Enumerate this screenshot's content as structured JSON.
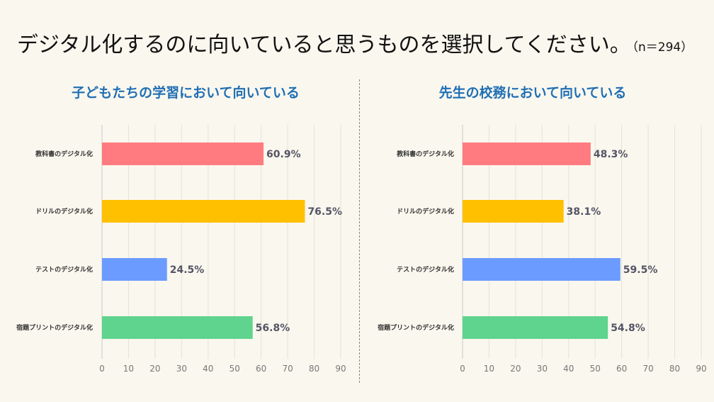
{
  "title": "デジタル化するのに向いていると思うものを選択してください。",
  "sample_size": "（n＝294）",
  "chart_data": [
    {
      "type": "bar",
      "orientation": "horizontal",
      "title": "子どもたちの学習において向いている",
      "categories": [
        "教科書のデジタル化",
        "ドリルのデジタル化",
        "テストのデジタル化",
        "宿題プリントのデジタル化"
      ],
      "values": [
        60.9,
        76.5,
        24.5,
        56.8
      ],
      "value_labels": [
        "60.9%",
        "76.5%",
        "24.5%",
        "56.8%"
      ],
      "colors": [
        "#ff7b7f",
        "#ffc000",
        "#6b9bff",
        "#5fd48e"
      ],
      "xlim": [
        0,
        90
      ],
      "xticks": [
        0,
        10,
        20,
        30,
        40,
        50,
        60,
        70,
        80,
        90
      ],
      "grid": true
    },
    {
      "type": "bar",
      "orientation": "horizontal",
      "title": "先生の校務において向いている",
      "categories": [
        "教科書のデジタル化",
        "ドリルのデジタル化",
        "テストのデジタル化",
        "宿題プリントのデジタル化"
      ],
      "values": [
        48.3,
        38.1,
        59.5,
        54.8
      ],
      "value_labels": [
        "48.3%",
        "38.1%",
        "59.5%",
        "54.8%"
      ],
      "colors": [
        "#ff7b7f",
        "#ffc000",
        "#6b9bff",
        "#5fd48e"
      ],
      "xlim": [
        0,
        90
      ],
      "xticks": [
        0,
        10,
        20,
        30,
        40,
        50,
        60,
        70,
        80,
        90
      ],
      "grid": true
    }
  ]
}
